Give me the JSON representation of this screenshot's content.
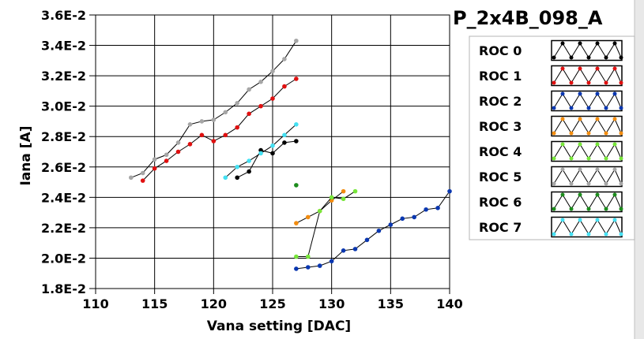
{
  "chart_data": {
    "type": "line",
    "title": "P_2x4B_098_A",
    "xlabel": "Vana setting [DAC]",
    "ylabel": "Iana [A]",
    "xlim": [
      110,
      140
    ],
    "ylim": [
      0.018,
      0.036
    ],
    "x_ticks": [
      110,
      115,
      120,
      125,
      130,
      135,
      140
    ],
    "x_tick_labels": [
      "110",
      "115",
      "120",
      "125",
      "130",
      "135",
      "140"
    ],
    "y_ticks": [
      0.018,
      0.02,
      0.022,
      0.024,
      0.026,
      0.028,
      0.03,
      0.032,
      0.034,
      0.036
    ],
    "y_tick_labels": [
      "1.8E-2",
      "2.0E-2",
      "2.2E-2",
      "2.4E-2",
      "2.6E-2",
      "2.8E-2",
      "3.0E-2",
      "3.2E-2",
      "3.4E-2",
      "3.6E-2"
    ],
    "grid": true,
    "legend_position": "right",
    "series": [
      {
        "name": "ROC 0",
        "color": "#000000",
        "points": [
          [
            122,
            0.0253
          ],
          [
            123,
            0.0257
          ],
          [
            124,
            0.0271
          ],
          [
            125,
            0.0269
          ],
          [
            126,
            0.0276
          ],
          [
            127,
            0.0277
          ]
        ]
      },
      {
        "name": "ROC 1",
        "color": "#e01010",
        "points": [
          [
            114,
            0.0251
          ],
          [
            115,
            0.0259
          ],
          [
            116,
            0.0264
          ],
          [
            117,
            0.027
          ],
          [
            118,
            0.0275
          ],
          [
            119,
            0.0281
          ],
          [
            120,
            0.0277
          ],
          [
            121,
            0.0281
          ],
          [
            122,
            0.0286
          ],
          [
            123,
            0.0295
          ],
          [
            124,
            0.03
          ],
          [
            125,
            0.0305
          ],
          [
            126,
            0.0313
          ],
          [
            127,
            0.0318
          ]
        ]
      },
      {
        "name": "ROC 2",
        "color": "#0a37b0",
        "points": [
          [
            127,
            0.0193
          ],
          [
            128,
            0.0194
          ],
          [
            129,
            0.0195
          ],
          [
            130,
            0.0198
          ],
          [
            131,
            0.0205
          ],
          [
            132,
            0.0206
          ],
          [
            133,
            0.0212
          ],
          [
            134,
            0.0218
          ],
          [
            135,
            0.0222
          ],
          [
            136,
            0.0226
          ],
          [
            137,
            0.0227
          ],
          [
            138,
            0.0232
          ],
          [
            139,
            0.0233
          ],
          [
            140,
            0.0244
          ]
        ]
      },
      {
        "name": "ROC 3",
        "color": "#f28c0f",
        "points": [
          [
            127,
            0.0223
          ],
          [
            128,
            0.0227
          ],
          [
            129,
            0.0231
          ],
          [
            130,
            0.0238
          ],
          [
            131,
            0.0244
          ]
        ]
      },
      {
        "name": "ROC 4",
        "color": "#77e63a",
        "points": [
          [
            127,
            0.0201
          ],
          [
            128,
            0.0201
          ],
          [
            129,
            0.0231
          ],
          [
            130,
            0.024
          ],
          [
            131,
            0.0239
          ],
          [
            132,
            0.0244
          ]
        ]
      },
      {
        "name": "ROC 5",
        "color": "#a6a6a6",
        "points": [
          [
            113,
            0.0253
          ],
          [
            114,
            0.0256
          ],
          [
            115,
            0.0265
          ],
          [
            116,
            0.0268
          ],
          [
            117,
            0.0276
          ],
          [
            118,
            0.0288
          ],
          [
            119,
            0.029
          ],
          [
            120,
            0.0291
          ],
          [
            121,
            0.0296
          ],
          [
            122,
            0.0302
          ],
          [
            123,
            0.0311
          ],
          [
            124,
            0.0316
          ],
          [
            125,
            0.0323
          ],
          [
            126,
            0.0331
          ],
          [
            127,
            0.0343
          ]
        ]
      },
      {
        "name": "ROC 6",
        "color": "#1c8c1c",
        "points": [
          [
            127,
            0.0248
          ]
        ]
      },
      {
        "name": "ROC 7",
        "color": "#44e0f2",
        "points": [
          [
            121,
            0.0253
          ],
          [
            122,
            0.026
          ],
          [
            123,
            0.0264
          ],
          [
            124,
            0.0269
          ],
          [
            125,
            0.0274
          ],
          [
            126,
            0.0281
          ],
          [
            127,
            0.0288
          ]
        ]
      }
    ]
  }
}
